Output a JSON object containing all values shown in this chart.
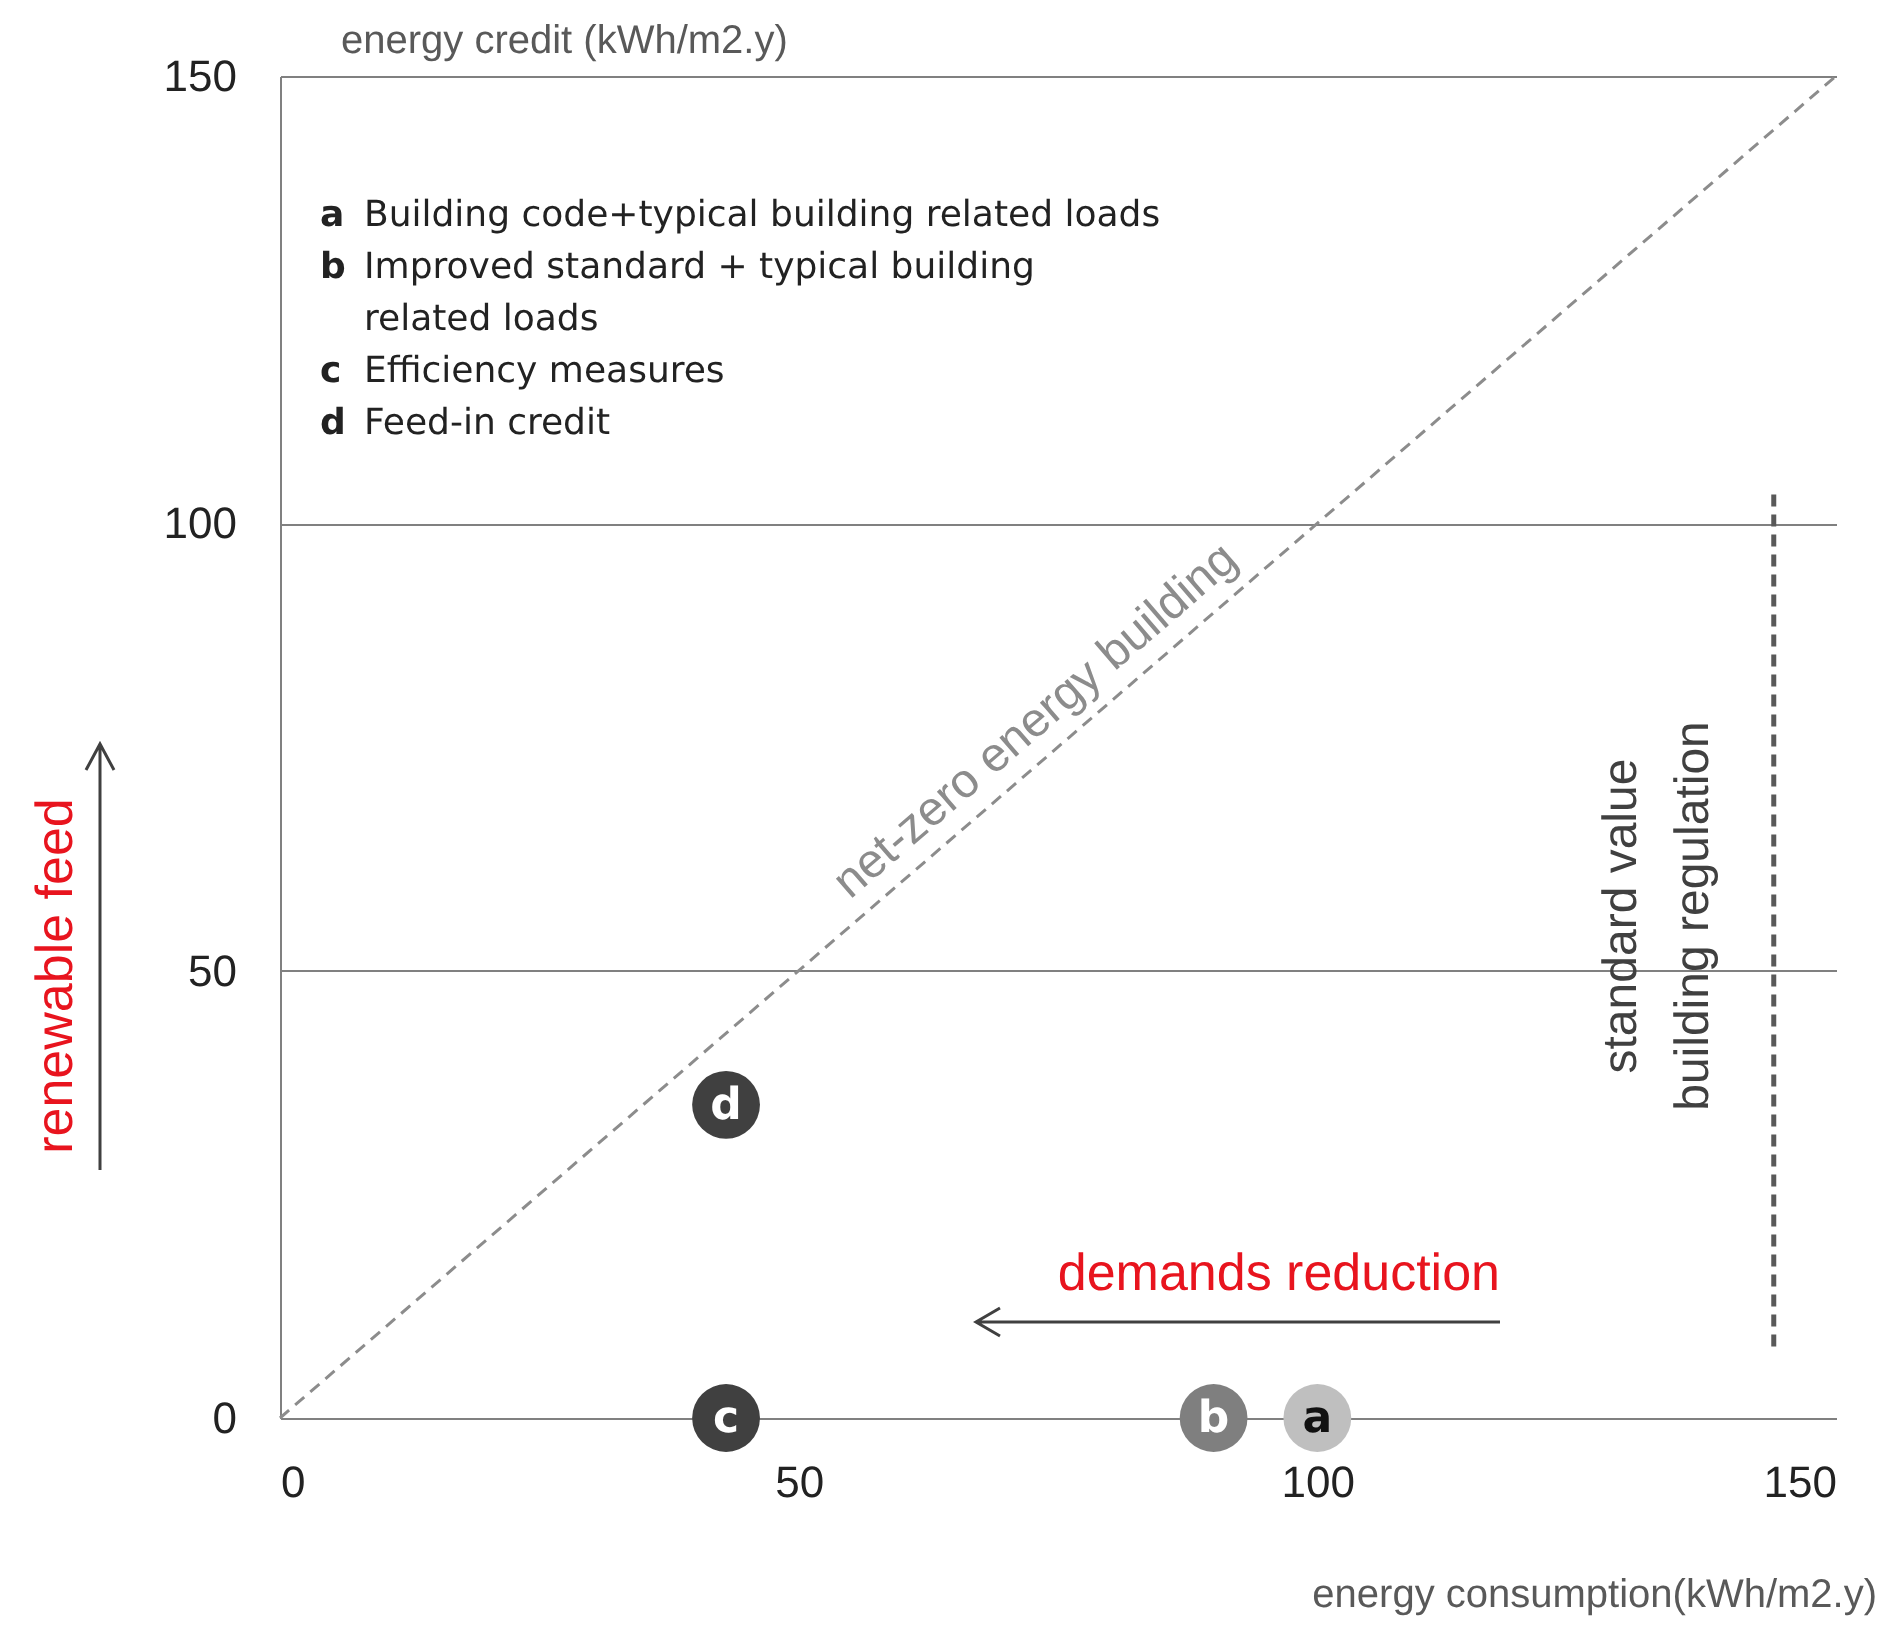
{
  "chart_data": {
    "type": "scatter",
    "xlabel": "energy consumption(kWh/m2.y)",
    "ylabel": "energy credit (kWh/m2.y)",
    "xlim": [
      0,
      150
    ],
    "ylim": [
      0,
      150
    ],
    "xticks": [
      0,
      50,
      100,
      150
    ],
    "yticks": [
      0,
      50,
      100,
      150
    ],
    "grid": "y",
    "marker": "circle",
    "series": [
      {
        "name": "a",
        "color": "#bfbfbf",
        "x": [
          100
        ],
        "values": [
          0
        ]
      },
      {
        "name": "b",
        "color": "#7f7f7f",
        "x": [
          90
        ],
        "values": [
          0
        ]
      },
      {
        "name": "c",
        "color": "#404040",
        "x": [
          43
        ],
        "values": [
          0
        ]
      },
      {
        "name": "d",
        "color": "#404040",
        "x": [
          43
        ],
        "values": [
          35
        ]
      },
      {
        "name": "net-zero energy building",
        "type": "line",
        "color": "#8c8c8c",
        "line_style": "dashed",
        "marker": "none",
        "x": [
          0,
          150
        ],
        "values": [
          0,
          150
        ]
      },
      {
        "name": "standard value building regulation",
        "type": "line",
        "color": "#595959",
        "line_style": "dashed",
        "marker": "none",
        "x": [
          144,
          144
        ],
        "values": [
          8,
          104
        ]
      }
    ],
    "annotations": [
      "a Building code+typical building related loads",
      "b Improved standard + typical building related loads",
      "c Efficiency measures",
      "d Feed-in credit",
      "renewable feed",
      "demands reduction"
    ]
  }
}
